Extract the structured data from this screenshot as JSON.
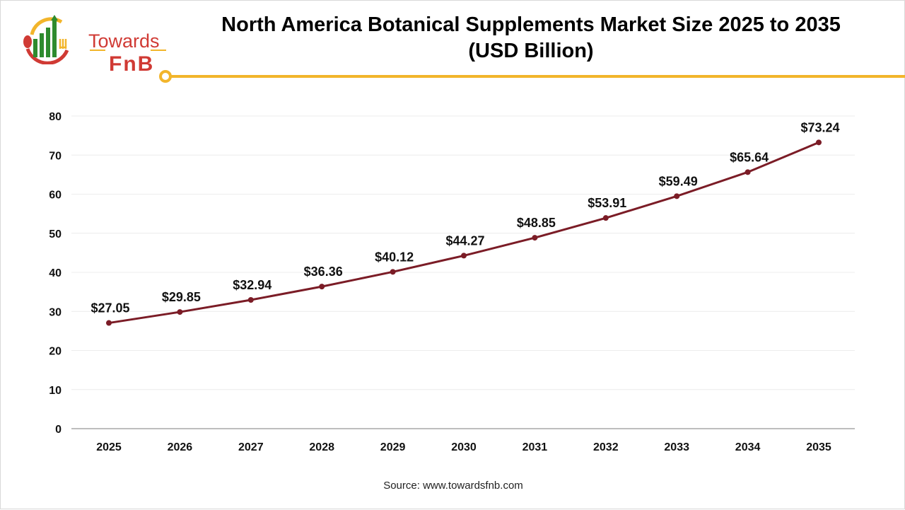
{
  "logo": {
    "line1": "Towards",
    "line2": "FnB"
  },
  "title_line1": "North America Botanical Supplements Market Size 2025 to 2035",
  "title_line2": "(USD Billion)",
  "source": "Source: www.towardsfnb.com",
  "colors": {
    "line": "#7b1c26",
    "accent": "#f2b52b",
    "brand_red": "#d03a34",
    "brand_green": "#2e8b2e"
  },
  "chart_data": {
    "type": "line",
    "title": "North America Botanical Supplements Market Size 2025 to 2035 (USD Billion)",
    "xlabel": "",
    "ylabel": "",
    "categories": [
      "2025",
      "2026",
      "2027",
      "2028",
      "2029",
      "2030",
      "2031",
      "2032",
      "2033",
      "2034",
      "2035"
    ],
    "values": [
      27.05,
      29.85,
      32.94,
      36.36,
      40.12,
      44.27,
      48.85,
      53.91,
      59.49,
      65.64,
      73.24
    ],
    "data_labels": [
      "$27.05",
      "$29.85",
      "$32.94",
      "$36.36",
      "$40.12",
      "$44.27",
      "$48.85",
      "$53.91",
      "$59.49",
      "$65.64",
      "$73.24"
    ],
    "ylim": [
      0,
      80
    ],
    "yticks": [
      0,
      10,
      20,
      30,
      40,
      50,
      60,
      70,
      80
    ],
    "grid": true,
    "legend": "none"
  }
}
